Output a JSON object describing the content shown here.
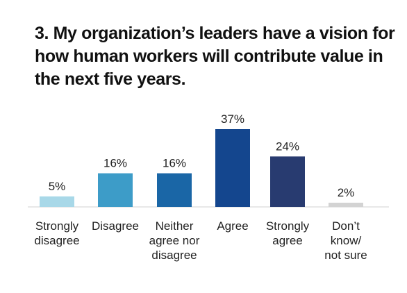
{
  "title": "3. My organization’s leaders have a vision for how human workers will contribute value in the next five years.",
  "chart_data": {
    "type": "bar",
    "title": "3. My organization’s leaders have a vision for how human workers will contribute value in the next five years.",
    "unit": "%",
    "categories": [
      [
        "Strongly",
        "disagree"
      ],
      [
        "Disagree"
      ],
      [
        "Neither",
        "agree nor",
        "disagree"
      ],
      [
        "Agree"
      ],
      [
        "Strongly",
        "agree"
      ],
      [
        "Don’t",
        "know/",
        "not sure"
      ]
    ],
    "values": [
      5,
      16,
      16,
      37,
      24,
      2
    ],
    "value_labels": [
      "5%",
      "16%",
      "16%",
      "37%",
      "24%",
      "2%"
    ],
    "colors": [
      "#a8d8e8",
      "#3d9cc8",
      "#1a66a6",
      "#14468e",
      "#283b70",
      "#d3d3d3"
    ],
    "ylim": [
      0,
      37
    ],
    "grid": false,
    "legend": "none"
  }
}
